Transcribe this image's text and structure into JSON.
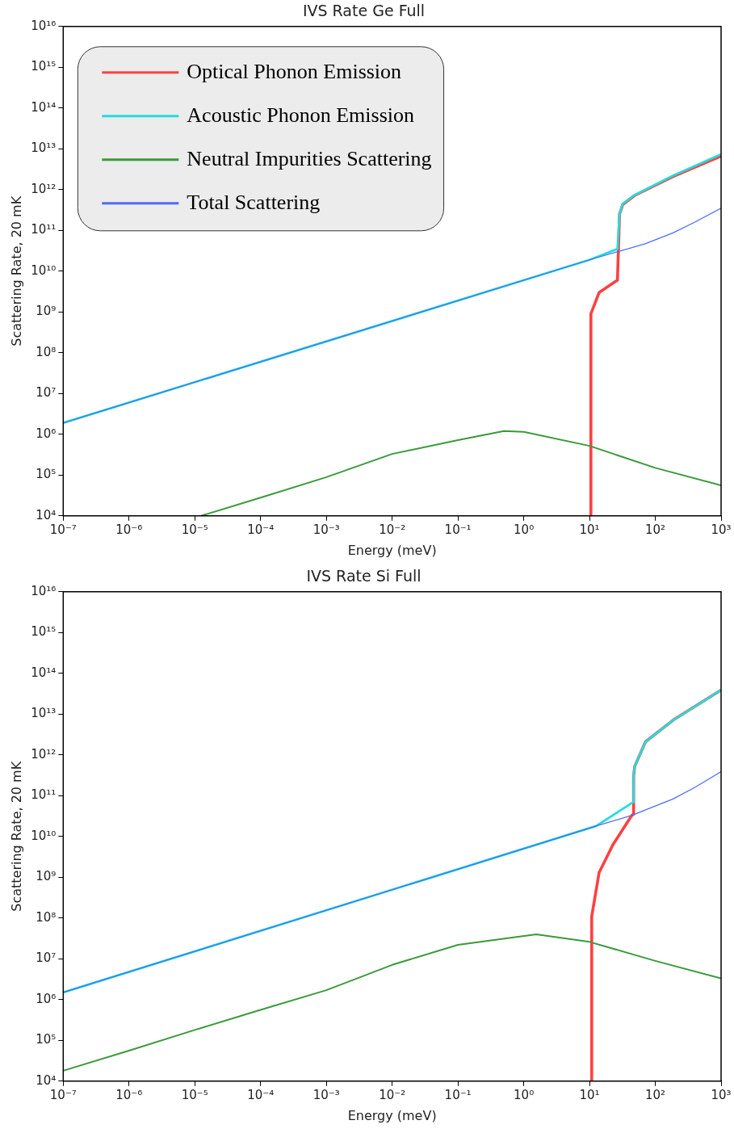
{
  "chart_data": [
    {
      "type": "line",
      "title": "IVS Rate Ge Full",
      "xlabel": "Energy (meV)",
      "ylabel": "Scattering Rate, 20 mK",
      "log": "xy",
      "grid": false,
      "legend": "top left",
      "xlim": [
        1e-07,
        1000
      ],
      "ylim": [
        10000,
        1e+16
      ],
      "xticks": [
        {
          "value": 1e-07,
          "label": "10⁻⁷"
        },
        {
          "value": 1e-06,
          "label": "10⁻⁶"
        },
        {
          "value": 1e-05,
          "label": "10⁻⁵"
        },
        {
          "value": 0.0001,
          "label": "10⁻⁴"
        },
        {
          "value": 0.001,
          "label": "10⁻³"
        },
        {
          "value": 0.01,
          "label": "10⁻²"
        },
        {
          "value": 0.1,
          "label": "10⁻¹"
        },
        {
          "value": 1,
          "label": "10⁰"
        },
        {
          "value": 10,
          "label": "10¹"
        },
        {
          "value": 100,
          "label": "10²"
        },
        {
          "value": 1000,
          "label": "10³"
        }
      ],
      "yticks": [
        {
          "value": 10000.0,
          "label": "10⁴"
        },
        {
          "value": 100000.0,
          "label": "10⁵"
        },
        {
          "value": 1000000.0,
          "label": "10⁶"
        },
        {
          "value": 10000000.0,
          "label": "10⁷"
        },
        {
          "value": 100000000.0,
          "label": "10⁸"
        },
        {
          "value": 1000000000.0,
          "label": "10⁹"
        },
        {
          "value": 10000000000.0,
          "label": "10¹⁰"
        },
        {
          "value": 100000000000.0,
          "label": "10¹¹"
        },
        {
          "value": 1000000000000.0,
          "label": "10¹²"
        },
        {
          "value": 10000000000000.0,
          "label": "10¹³"
        },
        {
          "value": 100000000000000.0,
          "label": "10¹⁴"
        },
        {
          "value": 1000000000000000.0,
          "label": "10¹⁵"
        },
        {
          "value": 1e+16,
          "label": "10¹⁶"
        }
      ],
      "series": [
        {
          "name": "Optical Phonon Emission",
          "color": "#ff4040",
          "x": [
            10.5,
            10.5,
            14,
            24.8,
            26.6,
            28.6,
            32,
            48.6,
            186,
            1000
          ],
          "values": [
            10000,
            900000000.0,
            3000000000.0,
            5600000000.0,
            6000000000.0,
            250000000000.0,
            430000000000.0,
            720000000000.0,
            2100000000000.0,
            6600000000000.0
          ]
        },
        {
          "name": "Acoustic Phonon Emission",
          "color": "#22dddd",
          "x": [
            1e-07,
            10,
            26.6,
            28.6,
            32,
            48.6,
            186,
            1000
          ],
          "values": [
            1900000.0,
            19000000000.0,
            35000000000.0,
            250000000000.0,
            450000000000.0,
            740000000000.0,
            2200000000000.0,
            7400000000000.0
          ]
        },
        {
          "name": "Neutral Impurities Scattering",
          "color": "#3a9a3a",
          "x": [
            1.24e-05,
            0.0001,
            0.001,
            0.01,
            0.1,
            0.5,
            1,
            10,
            100,
            1000
          ],
          "values": [
            10000,
            28000.0,
            89000.0,
            330000.0,
            720000.0,
            1200000.0,
            1150000.0,
            520000.0,
            150000.0,
            56000.0
          ]
        },
        {
          "name": "Total Scattering",
          "color": "#4b6bf5",
          "x": [
            1e-07,
            10,
            70,
            186,
            400,
            1000
          ],
          "values": [
            1900000.0,
            19000000000.0,
            47000000000.0,
            87000000000.0,
            160000000000.0,
            350000000000.0
          ]
        }
      ]
    },
    {
      "type": "line",
      "title": "IVS Rate Si Full",
      "xlabel": "Energy (meV)",
      "ylabel": "Scattering Rate, 20 mK",
      "log": "xy",
      "grid": false,
      "xlim": [
        1e-07,
        1000
      ],
      "ylim": [
        10000,
        1e+16
      ],
      "xticks": [
        {
          "value": 1e-07,
          "label": "10⁻⁷"
        },
        {
          "value": 1e-06,
          "label": "10⁻⁶"
        },
        {
          "value": 1e-05,
          "label": "10⁻⁵"
        },
        {
          "value": 0.0001,
          "label": "10⁻⁴"
        },
        {
          "value": 0.001,
          "label": "10⁻³"
        },
        {
          "value": 0.01,
          "label": "10⁻²"
        },
        {
          "value": 0.1,
          "label": "10⁻¹"
        },
        {
          "value": 1,
          "label": "10⁰"
        },
        {
          "value": 10,
          "label": "10¹"
        },
        {
          "value": 100,
          "label": "10²"
        },
        {
          "value": 1000,
          "label": "10³"
        }
      ],
      "yticks": [
        {
          "value": 10000.0,
          "label": "10⁴"
        },
        {
          "value": 100000.0,
          "label": "10⁵"
        },
        {
          "value": 1000000.0,
          "label": "10⁶"
        },
        {
          "value": 10000000.0,
          "label": "10⁷"
        },
        {
          "value": 100000000.0,
          "label": "10⁸"
        },
        {
          "value": 1000000000.0,
          "label": "10⁹"
        },
        {
          "value": 10000000000.0,
          "label": "10¹⁰"
        },
        {
          "value": 100000000000.0,
          "label": "10¹¹"
        },
        {
          "value": 1000000000000.0,
          "label": "10¹²"
        },
        {
          "value": 10000000000000.0,
          "label": "10¹³"
        },
        {
          "value": 100000000000000.0,
          "label": "10¹⁴"
        },
        {
          "value": 1000000000000000.0,
          "label": "10¹⁵"
        },
        {
          "value": 1e+16,
          "label": "10¹⁶"
        }
      ],
      "series": [
        {
          "color": "#ff4040",
          "x": [
            10.8,
            10.8,
            14,
            22.6,
            44,
            46.8,
            46.8,
            48.6,
            71,
            186,
            1000
          ],
          "values": [
            10000,
            110000000.0,
            1300000000.0,
            6200000000.0,
            33000000000.0,
            35000000000.0,
            300000000000.0,
            520000000000.0,
            2100000000000.0,
            7100000000000.0,
            39000000000000.0
          ]
        },
        {
          "color": "#22dddd",
          "x": [
            1e-07,
            12.6,
            44,
            46.8,
            46.8,
            48.6,
            71,
            186,
            1000
          ],
          "values": [
            1500000.0,
            18000000000.0,
            66000000000.0,
            70000000000.0,
            300000000000.0,
            520000000000.0,
            2100000000000.0,
            7100000000000.0,
            39000000000000.0
          ]
        },
        {
          "color": "#3a9a3a",
          "x": [
            1e-07,
            1e-06,
            1e-05,
            0.0001,
            0.001,
            0.01,
            0.1,
            1.55,
            10,
            100,
            1000
          ],
          "values": [
            18000.0,
            56000.0,
            180000.0,
            560000.0,
            1700000.0,
            7100000.0,
            22000000.0,
            40000000.0,
            26000000.0,
            8900000.0,
            3300000.0
          ]
        },
        {
          "color": "#4b6bf5",
          "x": [
            1e-07,
            12.6,
            44,
            186,
            400,
            1000
          ],
          "values": [
            1500000.0,
            18000000000.0,
            33000000000.0,
            83000000000.0,
            160000000000.0,
            390000000000.0
          ]
        }
      ]
    }
  ]
}
